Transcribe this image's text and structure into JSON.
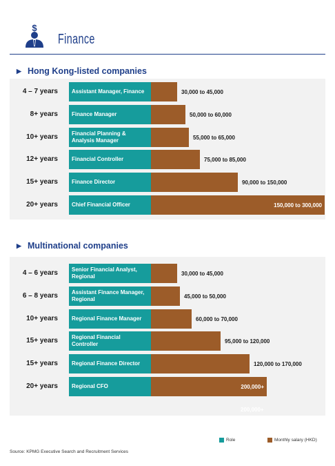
{
  "header": {
    "title": "Finance",
    "icon": "businessman-dollar-icon"
  },
  "legend": {
    "role": "Role",
    "salary": "Monthly salary (HKD)"
  },
  "source": "Source: KPMG Executive Search and Recruitment Services",
  "colors": {
    "role": "#169c9c",
    "salary": "#9c5c29",
    "title": "#1f3f8a",
    "section_bg": "#f2f2f2"
  },
  "chart_data": [
    {
      "type": "bar",
      "title": "Hong Kong-listed companies",
      "unit": "Monthly salary (HKD)",
      "xlim": [
        0,
        300000
      ],
      "rows": [
        {
          "years": "4 – 7 years",
          "role": "Assistant Manager, Finance",
          "min": 30000,
          "max": 45000,
          "label": "30,000 to 45,000"
        },
        {
          "years": "8+ years",
          "role": "Finance Manager",
          "min": 50000,
          "max": 60000,
          "label": "50,000 to 60,000"
        },
        {
          "years": "10+ years",
          "role": "Financial Planning & Analysis Manager",
          "min": 55000,
          "max": 65000,
          "label": "55,000 to 65,000"
        },
        {
          "years": "12+ years",
          "role": "Financial Controller",
          "min": 75000,
          "max": 85000,
          "label": "75,000 to 85,000"
        },
        {
          "years": "15+ years",
          "role": "Finance Director",
          "min": 90000,
          "max": 150000,
          "label": "90,000 to 150,000"
        },
        {
          "years": "20+ years",
          "role": "Chief Financial Officer",
          "min": 150000,
          "max": 300000,
          "label": "150,000 to 300,000"
        }
      ]
    },
    {
      "type": "bar",
      "title": "Multinational companies",
      "unit": "Monthly salary (HKD)",
      "xlim": [
        0,
        300000
      ],
      "rows": [
        {
          "years": "4 – 6 years",
          "role": "Senior Financial Analyst, Regional",
          "min": 30000,
          "max": 45000,
          "label": "30,000 to 45,000"
        },
        {
          "years": "6 – 8 years",
          "role": "Assistant Finance Manager, Regional",
          "min": 45000,
          "max": 50000,
          "label": "45,000 to 50,000"
        },
        {
          "years": "10+ years",
          "role": "Regional Finance Manager",
          "min": 60000,
          "max": 70000,
          "label": "60,000 to 70,000"
        },
        {
          "years": "15+ years",
          "role": "Regional Financial Controller",
          "min": 95000,
          "max": 120000,
          "label": "95,000 to 120,000"
        },
        {
          "years": "15+ years",
          "role": "Regional Finance Director",
          "min": 120000,
          "max": 170000,
          "label": "120,000 to 170,000"
        },
        {
          "years": "20+ years",
          "role": "Regional CFO",
          "min": 200000,
          "max": null,
          "label": "200,000+"
        }
      ],
      "footnote_label": "200,000+"
    }
  ]
}
